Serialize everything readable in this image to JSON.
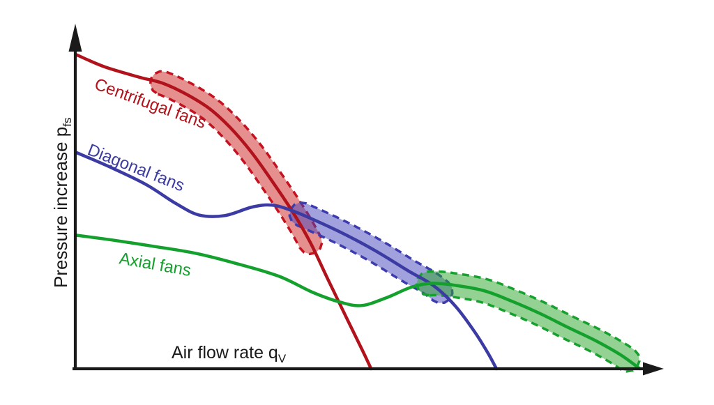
{
  "chart_data": {
    "type": "line",
    "title": "",
    "xlabel": {
      "text": "Air flow rate q",
      "sub": "V"
    },
    "ylabel": {
      "text": "Pressure increase p",
      "sub": "fs"
    },
    "axes": {
      "color": "#1a1a1a",
      "x_range": [
        0,
        1
      ],
      "y_range": [
        0,
        1
      ],
      "ticks": false,
      "grid": false,
      "note": "qualitative axes - no numeric tick labels shown"
    },
    "legend_position": "labels-on-curves",
    "series": [
      {
        "id": "centrifugal",
        "label": "Centrifugal fans",
        "color": "#b1121b",
        "points": [
          [
            0.001,
            0.993
          ],
          [
            0.05,
            0.954
          ],
          [
            0.11,
            0.921
          ],
          [
            0.148,
            0.903
          ],
          [
            0.187,
            0.87
          ],
          [
            0.229,
            0.822
          ],
          [
            0.264,
            0.763
          ],
          [
            0.3,
            0.686
          ],
          [
            0.336,
            0.593
          ],
          [
            0.373,
            0.49
          ],
          [
            0.401,
            0.4
          ],
          [
            0.431,
            0.284
          ],
          [
            0.461,
            0.169
          ],
          [
            0.49,
            0.059
          ],
          [
            0.505,
            0.0
          ]
        ],
        "highlight_band": {
          "x_from": 0.148,
          "x_to": 0.401,
          "fill": "#cc2020",
          "fill_opacity": 0.5,
          "border_color": "#c41220"
        }
      },
      {
        "id": "diagonal",
        "label": "Diagonal fans",
        "color": "#3b3ba3",
        "points": [
          [
            0.001,
            0.684
          ],
          [
            0.062,
            0.635
          ],
          [
            0.121,
            0.582
          ],
          [
            0.171,
            0.523
          ],
          [
            0.211,
            0.486
          ],
          [
            0.255,
            0.484
          ],
          [
            0.302,
            0.511
          ],
          [
            0.336,
            0.517
          ],
          [
            0.371,
            0.499
          ],
          [
            0.413,
            0.466
          ],
          [
            0.461,
            0.424
          ],
          [
            0.514,
            0.371
          ],
          [
            0.568,
            0.31
          ],
          [
            0.612,
            0.262
          ],
          [
            0.648,
            0.2
          ],
          [
            0.681,
            0.119
          ],
          [
            0.705,
            0.048
          ],
          [
            0.719,
            0.0
          ]
        ],
        "highlight_band": {
          "x_from": 0.385,
          "x_to": 0.625,
          "fill": "#4444bb",
          "fill_opacity": 0.5,
          "border_color": "#3c3cae"
        }
      },
      {
        "id": "axial",
        "label": "Axial fans",
        "color": "#14a02c",
        "points": [
          [
            0.001,
            0.422
          ],
          [
            0.062,
            0.407
          ],
          [
            0.133,
            0.387
          ],
          [
            0.205,
            0.365
          ],
          [
            0.276,
            0.332
          ],
          [
            0.348,
            0.292
          ],
          [
            0.407,
            0.24
          ],
          [
            0.455,
            0.209
          ],
          [
            0.49,
            0.2
          ],
          [
            0.532,
            0.225
          ],
          [
            0.574,
            0.258
          ],
          [
            0.61,
            0.27
          ],
          [
            0.651,
            0.263
          ],
          [
            0.699,
            0.246
          ],
          [
            0.746,
            0.213
          ],
          [
            0.794,
            0.174
          ],
          [
            0.842,
            0.13
          ],
          [
            0.889,
            0.088
          ],
          [
            0.931,
            0.044
          ],
          [
            0.964,
            0.0
          ]
        ],
        "highlight_band": {
          "x_from": 0.602,
          "x_to": 0.945,
          "fill": "#2aa62a",
          "fill_opacity": 0.5,
          "border_color": "#16a02e"
        }
      }
    ]
  }
}
